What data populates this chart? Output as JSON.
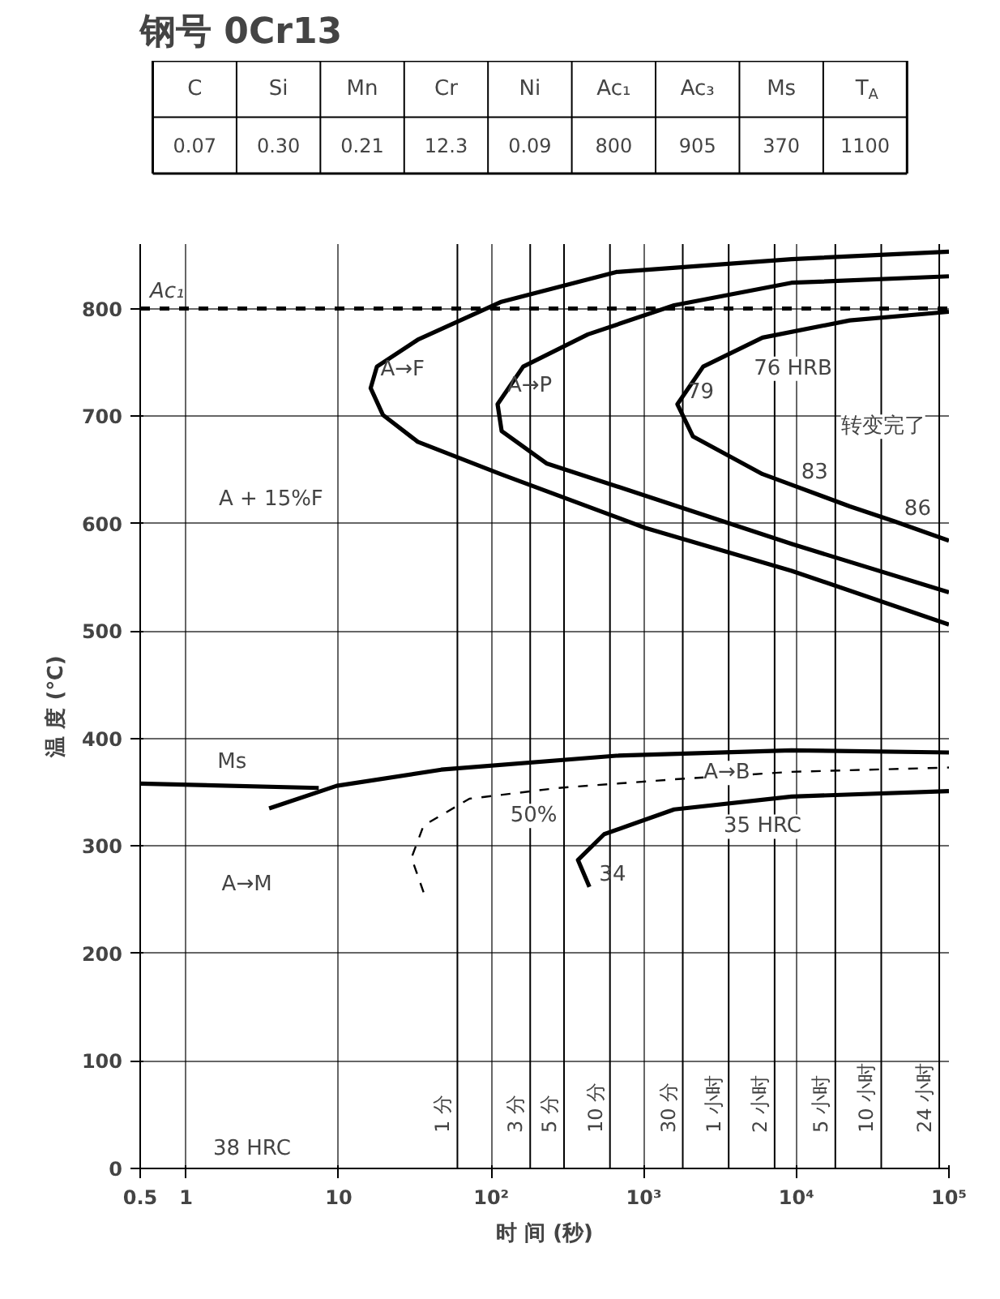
{
  "chart_data": [
    {
      "type": "other",
      "title": "钢号 0Cr13",
      "categories": [
        "C",
        "Si",
        "Mn",
        "Cr",
        "Ni",
        "Ac₁",
        "Ac₃",
        "Ms",
        "T$_{A}$"
      ],
      "values": [
        0.07,
        0.3,
        0.21,
        12.3,
        0.09,
        800,
        905,
        370,
        1100
      ],
      "value_labels": [
        "0.07",
        "0.30",
        "0.21",
        "12.3",
        "0.09",
        "800",
        "905",
        "370",
        "1100"
      ]
    },
    {
      "type": "line",
      "xlabel": "时 间 (秒)",
      "ylabel": "温 度 (℃)",
      "log": "x",
      "xlim": [
        0.5,
        100000
      ],
      "ylim": [
        0,
        860
      ],
      "xticks": [
        0.5,
        1,
        10,
        {
          "value": 100,
          "label": "10²"
        },
        {
          "value": 1000,
          "label": "10³"
        },
        {
          "value": 10000,
          "label": "10⁴"
        },
        {
          "value": 100000,
          "label": "10⁵"
        }
      ],
      "yticks": [
        0,
        100,
        200,
        300,
        400,
        500,
        600,
        700,
        800
      ],
      "grid": true,
      "line_style": "solid",
      "series": [
        {
          "color": "#000000",
          "x": [
            100000,
            9300,
            660,
            115,
            33,
            17.8,
            16.2,
            19.5,
            33,
            115,
            1020,
            9300,
            100000
          ],
          "values": [
            853,
            846,
            834,
            806,
            771,
            746,
            726,
            701,
            676,
            646,
            596,
            556,
            506
          ]
        },
        {
          "color": "#000000",
          "x": [
            100000,
            9300,
            1580,
            430,
            162,
            110,
            117,
            230,
            1020,
            9300,
            100000
          ],
          "values": [
            830,
            824,
            803,
            776,
            746,
            711,
            686,
            656,
            626,
            581,
            536
          ]
        },
        {
          "color": "#000000",
          "x": [
            100000,
            22400,
            6000,
            2450,
            1660,
            2100,
            6000,
            9300,
            22400,
            44000,
            100000
          ],
          "values": [
            797,
            789,
            773,
            746,
            711,
            681,
            646,
            636,
            616,
            602,
            584
          ]
        },
        {
          "color": "#000000",
          "x": [
            0.5,
            7.4
          ],
          "values": [
            358,
            354
          ]
        },
        {
          "color": "#000000",
          "x": [
            3.5,
            9.7,
            47,
            660,
            9300,
            100000
          ],
          "values": [
            335,
            356,
            371,
            384,
            389,
            387
          ]
        },
        {
          "color": "#000000",
          "line_style": "dashed",
          "x": [
            36,
            30,
            36,
            72,
            275,
            1580,
            9300,
            100000
          ],
          "values": [
            257,
            289,
            319,
            344,
            354,
            362,
            369,
            373
          ]
        },
        {
          "color": "#000000",
          "x": [
            440,
            370,
            550,
            1580,
            9300,
            100000
          ],
          "values": [
            262,
            287,
            311,
            334,
            346,
            351
          ]
        }
      ],
      "ref_lines": [
        {
          "axis": "y",
          "value": 800,
          "label": "Ac₁",
          "line_style": "dashed"
        },
        {
          "axis": "x",
          "value": 60,
          "label": "1 分"
        },
        {
          "axis": "x",
          "value": 180,
          "label": "3 分"
        },
        {
          "axis": "x",
          "value": 300,
          "label": "5 分"
        },
        {
          "axis": "x",
          "value": 600,
          "label": "10 分"
        },
        {
          "axis": "x",
          "value": 1800,
          "label": "30 分"
        },
        {
          "axis": "x",
          "value": 3600,
          "label": "1 小时"
        },
        {
          "axis": "x",
          "value": 7200,
          "label": "2 小时"
        },
        {
          "axis": "x",
          "value": 18000,
          "label": "5 小时"
        },
        {
          "axis": "x",
          "value": 36000,
          "label": "10 小时"
        },
        {
          "axis": "x",
          "value": 86400,
          "label": "24 小时"
        }
      ],
      "annotations": [
        {
          "text": "A→F",
          "x": 16.2,
          "y": 726
        },
        {
          "text": "A→P",
          "x": 110,
          "y": 711
        },
        {
          "text": "79",
          "x": 1660,
          "y": 711
        },
        {
          "text": "83",
          "x": 9300,
          "y": 636
        },
        {
          "text": "86",
          "x": 44000,
          "y": 602
        },
        {
          "text": "34",
          "x": 440,
          "y": 262
        },
        "76 HRB",
        "35 HRC",
        "转变完了",
        "A + 15%F",
        "Ms",
        "A→B",
        "50%",
        "A→M",
        "38 HRC"
      ]
    }
  ]
}
